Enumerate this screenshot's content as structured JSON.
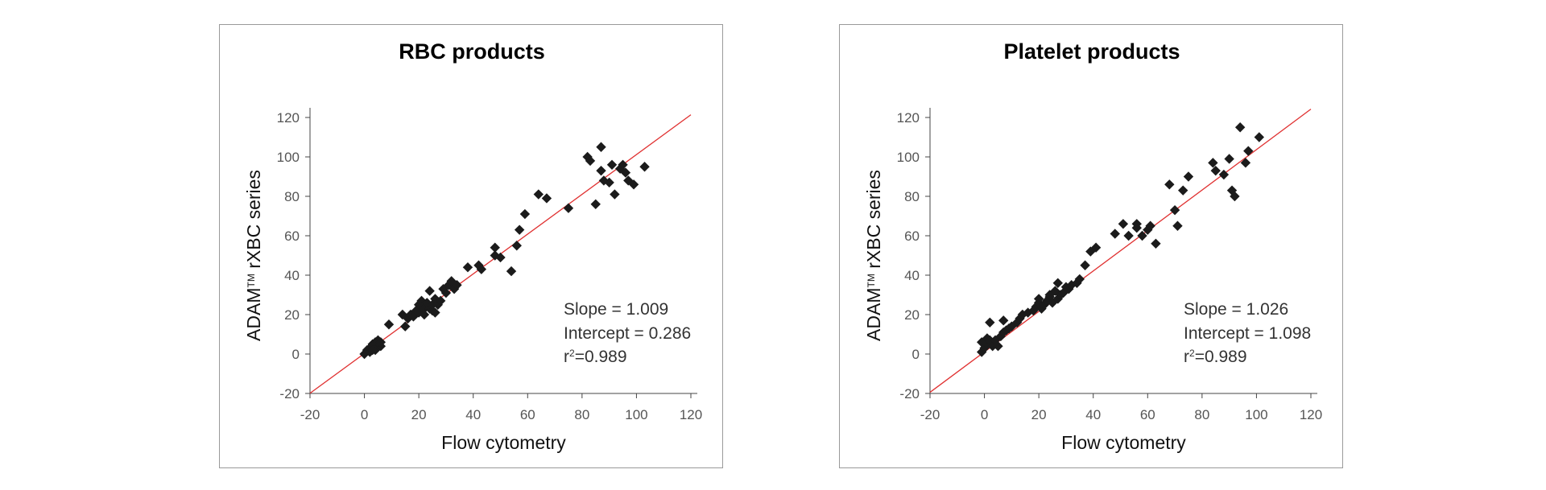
{
  "chart_data": [
    {
      "type": "scatter",
      "title": "RBC products",
      "xlabel": "Flow cytometry",
      "ylabel_main": "ADAM",
      "ylabel_tm": "TM",
      "ylabel_rest": " rXBC series",
      "xlim": [
        -20,
        120
      ],
      "ylim": [
        -20,
        120
      ],
      "xticks": [
        "-20",
        "0",
        "20",
        "40",
        "60",
        "80",
        "100",
        "120"
      ],
      "yticks": [
        "-20",
        "0",
        "20",
        "40",
        "60",
        "80",
        "100",
        "120"
      ],
      "fit": {
        "slope": 1.009,
        "intercept": 0.286
      },
      "stats": {
        "slope_text": "Slope = 1.009",
        "intercept_text": "Intercept = 0.286",
        "r2_prefix": "r",
        "r2_sup": "2",
        "r2_value": "=0.989"
      },
      "points": [
        [
          0,
          0
        ],
        [
          1,
          2
        ],
        [
          2,
          3
        ],
        [
          3,
          5
        ],
        [
          4,
          6
        ],
        [
          5,
          7
        ],
        [
          3,
          4
        ],
        [
          4,
          3
        ],
        [
          5,
          5
        ],
        [
          6,
          4
        ],
        [
          4,
          2
        ],
        [
          2,
          1
        ],
        [
          5,
          6
        ],
        [
          3,
          2
        ],
        [
          6,
          6
        ],
        [
          9,
          15
        ],
        [
          14,
          20
        ],
        [
          15,
          14
        ],
        [
          16,
          18
        ],
        [
          17,
          20
        ],
        [
          18,
          19
        ],
        [
          19,
          22
        ],
        [
          20,
          25
        ],
        [
          20,
          21
        ],
        [
          21,
          27
        ],
        [
          21,
          24
        ],
        [
          22,
          23
        ],
        [
          22,
          20
        ],
        [
          23,
          26
        ],
        [
          24,
          23
        ],
        [
          24,
          32
        ],
        [
          25,
          22
        ],
        [
          25,
          25
        ],
        [
          26,
          28
        ],
        [
          26,
          21
        ],
        [
          27,
          25
        ],
        [
          28,
          27
        ],
        [
          29,
          33
        ],
        [
          30,
          31
        ],
        [
          31,
          35
        ],
        [
          32,
          37
        ],
        [
          33,
          33
        ],
        [
          34,
          35
        ],
        [
          38,
          44
        ],
        [
          42,
          45
        ],
        [
          43,
          43
        ],
        [
          48,
          54
        ],
        [
          48,
          50
        ],
        [
          50,
          49
        ],
        [
          54,
          42
        ],
        [
          56,
          55
        ],
        [
          57,
          63
        ],
        [
          59,
          71
        ],
        [
          64,
          81
        ],
        [
          67,
          79
        ],
        [
          75,
          74
        ],
        [
          82,
          100
        ],
        [
          83,
          98
        ],
        [
          85,
          76
        ],
        [
          87,
          93
        ],
        [
          87,
          105
        ],
        [
          88,
          88
        ],
        [
          90,
          87
        ],
        [
          91,
          96
        ],
        [
          92,
          81
        ],
        [
          94,
          94
        ],
        [
          95,
          96
        ],
        [
          96,
          92
        ],
        [
          97,
          88
        ],
        [
          99,
          86
        ],
        [
          103,
          95
        ]
      ]
    },
    {
      "type": "scatter",
      "title": "Platelet products",
      "xlabel": "Flow cytometry",
      "ylabel_main": "ADAM",
      "ylabel_tm": "TM",
      "ylabel_rest": " rXBC series",
      "xlim": [
        -20,
        120
      ],
      "ylim": [
        -20,
        120
      ],
      "xticks": [
        "-20",
        "0",
        "20",
        "40",
        "60",
        "80",
        "100",
        "120"
      ],
      "yticks": [
        "-20",
        "0",
        "20",
        "40",
        "60",
        "80",
        "100",
        "120"
      ],
      "fit": {
        "slope": 1.026,
        "intercept": 1.098
      },
      "stats": {
        "slope_text": "Slope = 1.026",
        "intercept_text": "Intercept = 1.098",
        "r2_prefix": "r",
        "r2_sup": "2",
        "r2_value": "=0.989"
      },
      "points": [
        [
          -1,
          1
        ],
        [
          -1,
          6
        ],
        [
          0,
          3
        ],
        [
          1,
          5
        ],
        [
          1,
          8
        ],
        [
          2,
          7
        ],
        [
          2,
          16
        ],
        [
          3,
          4
        ],
        [
          4,
          7
        ],
        [
          5,
          4
        ],
        [
          6,
          9
        ],
        [
          7,
          11
        ],
        [
          7,
          17
        ],
        [
          8,
          12
        ],
        [
          9,
          13
        ],
        [
          10,
          14
        ],
        [
          12,
          16
        ],
        [
          13,
          18
        ],
        [
          14,
          20
        ],
        [
          16,
          21
        ],
        [
          18,
          22
        ],
        [
          19,
          24
        ],
        [
          20,
          26
        ],
        [
          20,
          28
        ],
        [
          21,
          23
        ],
        [
          22,
          25
        ],
        [
          23,
          27
        ],
        [
          24,
          29
        ],
        [
          24,
          30
        ],
        [
          25,
          26
        ],
        [
          26,
          32
        ],
        [
          27,
          28
        ],
        [
          27,
          36
        ],
        [
          28,
          30
        ],
        [
          29,
          31
        ],
        [
          30,
          34
        ],
        [
          31,
          33
        ],
        [
          32,
          35
        ],
        [
          34,
          36
        ],
        [
          35,
          38
        ],
        [
          37,
          45
        ],
        [
          39,
          52
        ],
        [
          41,
          54
        ],
        [
          48,
          61
        ],
        [
          51,
          66
        ],
        [
          53,
          60
        ],
        [
          56,
          64
        ],
        [
          56,
          66
        ],
        [
          58,
          60
        ],
        [
          60,
          63
        ],
        [
          61,
          65
        ],
        [
          63,
          56
        ],
        [
          68,
          86
        ],
        [
          70,
          73
        ],
        [
          71,
          65
        ],
        [
          73,
          83
        ],
        [
          75,
          90
        ],
        [
          84,
          97
        ],
        [
          85,
          93
        ],
        [
          88,
          91
        ],
        [
          90,
          99
        ],
        [
          91,
          83
        ],
        [
          92,
          80
        ],
        [
          94,
          115
        ],
        [
          96,
          97
        ],
        [
          97,
          103
        ],
        [
          101,
          110
        ]
      ]
    }
  ]
}
